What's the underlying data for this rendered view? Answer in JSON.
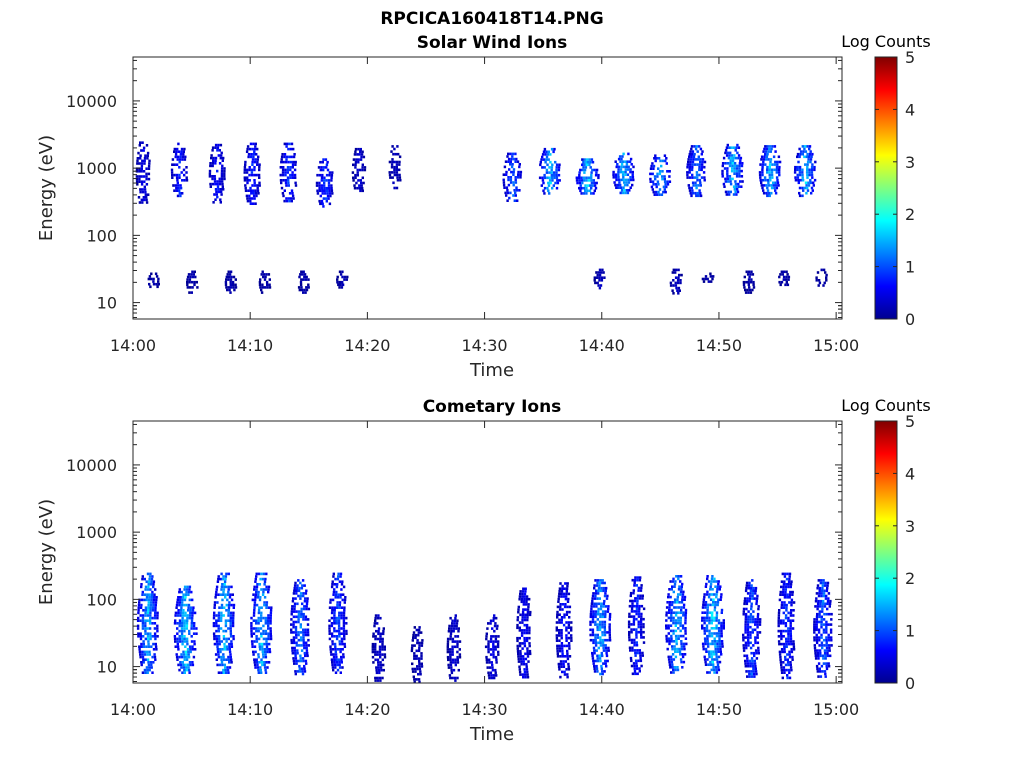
{
  "figure": {
    "title": "RPCICA160418T14.PNG"
  },
  "chart_data": [
    {
      "type": "heatmap",
      "title": "Solar Wind Ions",
      "xlabel": "Time",
      "ylabel": "Energy (eV)",
      "x_ticks": [
        "14:00",
        "14:10",
        "14:20",
        "14:30",
        "14:40",
        "14:50",
        "15:00"
      ],
      "y_ticks": [
        10,
        100,
        1000,
        10000
      ],
      "y_tick_labels": [
        "10",
        "100",
        "1000",
        "10000"
      ],
      "y_scale": "log",
      "xlim_minutes": [
        0,
        60.5
      ],
      "ylim_eV": [
        5.7,
        45000
      ],
      "colorbar": {
        "label": "Log Counts",
        "range": [
          0,
          5
        ],
        "ticks": [
          "0",
          "1",
          "2",
          "3",
          "4",
          "5"
        ],
        "colormap": "jet"
      },
      "blobs": [
        {
          "t": 0.8,
          "e_lo": 300,
          "e_hi": 2500,
          "level": 0.5
        },
        {
          "t": 3.9,
          "e_lo": 380,
          "e_hi": 2400,
          "level": 0.8
        },
        {
          "t": 7.1,
          "e_lo": 320,
          "e_hi": 2300,
          "level": 0.7
        },
        {
          "t": 10.1,
          "e_lo": 300,
          "e_hi": 2400,
          "level": 0.8
        },
        {
          "t": 13.2,
          "e_lo": 330,
          "e_hi": 2400,
          "level": 0.9
        },
        {
          "t": 16.3,
          "e_lo": 280,
          "e_hi": 1400,
          "level": 0.9
        },
        {
          "t": 19.2,
          "e_lo": 450,
          "e_hi": 2000,
          "level": 0.4
        },
        {
          "t": 22.3,
          "e_lo": 500,
          "e_hi": 2200,
          "level": 0.3
        },
        {
          "t": 32.3,
          "e_lo": 320,
          "e_hi": 1700,
          "level": 1.1
        },
        {
          "t": 35.5,
          "e_lo": 420,
          "e_hi": 2000,
          "level": 1.5
        },
        {
          "t": 38.7,
          "e_lo": 420,
          "e_hi": 1400,
          "level": 1.6
        },
        {
          "t": 41.8,
          "e_lo": 430,
          "e_hi": 1700,
          "level": 1.5
        },
        {
          "t": 44.9,
          "e_lo": 400,
          "e_hi": 1600,
          "level": 1.4
        },
        {
          "t": 48.0,
          "e_lo": 380,
          "e_hi": 2200,
          "level": 1.2
        },
        {
          "t": 51.1,
          "e_lo": 380,
          "e_hi": 2300,
          "level": 1.5
        },
        {
          "t": 54.3,
          "e_lo": 390,
          "e_hi": 2200,
          "level": 1.5
        },
        {
          "t": 57.3,
          "e_lo": 390,
          "e_hi": 2200,
          "level": 1.5
        },
        {
          "t": 1.7,
          "e_lo": 17,
          "e_hi": 28,
          "level": 0.2
        },
        {
          "t": 5.0,
          "e_lo": 14,
          "e_hi": 30,
          "level": 0.2
        },
        {
          "t": 8.3,
          "e_lo": 14,
          "e_hi": 30,
          "level": 0.2
        },
        {
          "t": 11.2,
          "e_lo": 14,
          "e_hi": 30,
          "level": 0.2
        },
        {
          "t": 14.5,
          "e_lo": 14,
          "e_hi": 30,
          "level": 0.2
        },
        {
          "t": 17.8,
          "e_lo": 17,
          "e_hi": 30,
          "level": 0.2
        },
        {
          "t": 39.8,
          "e_lo": 17,
          "e_hi": 32,
          "level": 0.3
        },
        {
          "t": 46.3,
          "e_lo": 14,
          "e_hi": 32,
          "level": 0.3
        },
        {
          "t": 49.0,
          "e_lo": 20,
          "e_hi": 28,
          "level": 0.2
        },
        {
          "t": 52.5,
          "e_lo": 14,
          "e_hi": 30,
          "level": 0.2
        },
        {
          "t": 55.5,
          "e_lo": 18,
          "e_hi": 30,
          "level": 0.2
        },
        {
          "t": 58.7,
          "e_lo": 18,
          "e_hi": 32,
          "level": 0.2
        }
      ]
    },
    {
      "type": "heatmap",
      "title": "Cometary Ions",
      "xlabel": "Time",
      "ylabel": "Energy (eV)",
      "x_ticks": [
        "14:00",
        "14:10",
        "14:20",
        "14:30",
        "14:40",
        "14:50",
        "15:00"
      ],
      "y_ticks": [
        10,
        100,
        1000,
        10000
      ],
      "y_tick_labels": [
        "10",
        "100",
        "1000",
        "10000"
      ],
      "y_scale": "log",
      "xlim_minutes": [
        0,
        60.5
      ],
      "ylim_eV": [
        5.7,
        45000
      ],
      "colorbar": {
        "label": "Log Counts",
        "range": [
          0,
          5
        ],
        "ticks": [
          "0",
          "1",
          "2",
          "3",
          "4",
          "5"
        ],
        "colormap": "jet"
      },
      "blobs": [
        {
          "t": 1.2,
          "e_lo": 8,
          "e_hi": 250,
          "level": 1.4
        },
        {
          "t": 4.4,
          "e_lo": 8,
          "e_hi": 160,
          "level": 1.6
        },
        {
          "t": 7.7,
          "e_lo": 8,
          "e_hi": 250,
          "level": 1.5
        },
        {
          "t": 10.9,
          "e_lo": 8,
          "e_hi": 250,
          "level": 1.5
        },
        {
          "t": 14.2,
          "e_lo": 8,
          "e_hi": 200,
          "level": 1.2
        },
        {
          "t": 17.4,
          "e_lo": 8,
          "e_hi": 250,
          "level": 1.0
        },
        {
          "t": 20.9,
          "e_lo": 6,
          "e_hi": 60,
          "level": 0.4
        },
        {
          "t": 24.2,
          "e_lo": 6,
          "e_hi": 40,
          "level": 0.3
        },
        {
          "t": 27.3,
          "e_lo": 6,
          "e_hi": 60,
          "level": 0.4
        },
        {
          "t": 30.6,
          "e_lo": 7,
          "e_hi": 60,
          "level": 0.5
        },
        {
          "t": 33.3,
          "e_lo": 7,
          "e_hi": 150,
          "level": 0.6
        },
        {
          "t": 36.7,
          "e_lo": 7,
          "e_hi": 180,
          "level": 0.7
        },
        {
          "t": 39.8,
          "e_lo": 8,
          "e_hi": 200,
          "level": 1.4
        },
        {
          "t": 42.9,
          "e_lo": 8,
          "e_hi": 220,
          "level": 0.8
        },
        {
          "t": 46.3,
          "e_lo": 8,
          "e_hi": 230,
          "level": 1.5
        },
        {
          "t": 49.4,
          "e_lo": 8,
          "e_hi": 230,
          "level": 1.6
        },
        {
          "t": 52.7,
          "e_lo": 7,
          "e_hi": 200,
          "level": 1.0
        },
        {
          "t": 55.7,
          "e_lo": 7,
          "e_hi": 250,
          "level": 0.9
        },
        {
          "t": 58.8,
          "e_lo": 7,
          "e_hi": 200,
          "level": 1.1
        }
      ]
    }
  ]
}
